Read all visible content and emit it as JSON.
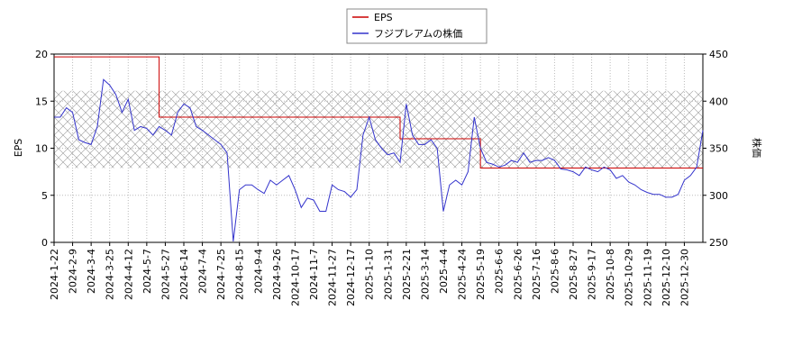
{
  "chart_data": {
    "type": "line",
    "legend_position": "upper center",
    "ylabel": "EPS",
    "y2label": "株価",
    "ylim": [
      0,
      20
    ],
    "yticks": [
      0,
      5,
      10,
      15,
      20
    ],
    "y2lim": [
      250,
      450
    ],
    "y2ticks": [
      250,
      300,
      350,
      400,
      450
    ],
    "grid": true,
    "shaded_range": [
      7.9,
      16.1
    ],
    "categories": [
      "2024-1-22",
      null,
      null,
      "2024-2-9",
      null,
      null,
      "2024-3-4",
      null,
      null,
      "2024-3-25",
      null,
      null,
      "2024-4-12",
      null,
      null,
      "2024-5-7",
      null,
      null,
      "2024-5-27",
      null,
      null,
      "2024-6-14",
      null,
      null,
      "2024-7-4",
      null,
      null,
      "2024-7-25",
      null,
      null,
      "2024-8-15",
      null,
      null,
      "2024-9-4",
      null,
      null,
      "2024-9-26",
      null,
      null,
      "2024-10-17",
      null,
      null,
      "2024-11-7",
      null,
      null,
      "2024-11-27",
      null,
      null,
      "2024-12-17",
      null,
      null,
      "2025-1-10",
      null,
      null,
      "2025-1-31",
      null,
      null,
      "2025-2-21",
      null,
      null,
      "2025-3-14",
      null,
      null,
      "2025-4-4",
      null,
      null,
      "2025-4-24",
      null,
      null,
      "2025-5-19",
      null,
      null,
      "2025-6-6",
      null,
      null,
      "2025-6-26",
      null,
      null,
      "2025-7-16",
      null,
      null,
      "2025-8-6",
      null,
      null,
      "2025-8-27",
      null,
      null,
      "2025-9-17",
      null,
      null,
      "2025-10-8",
      null,
      null,
      "2025-10-29",
      null,
      null,
      "2025-11-19",
      null,
      null,
      "2025-12-10",
      null,
      null,
      "2025-12-30",
      null,
      null,
      null
    ],
    "series": [
      {
        "name": "EPS",
        "color": "#cc0000",
        "axis": "y",
        "step": true,
        "values": [
          19.7,
          19.7,
          19.7,
          19.7,
          19.7,
          19.7,
          19.7,
          19.7,
          19.7,
          19.7,
          19.7,
          19.7,
          19.7,
          19.7,
          19.7,
          19.7,
          19.7,
          13.3,
          13.3,
          13.3,
          13.3,
          13.3,
          13.3,
          13.3,
          13.3,
          13.3,
          13.3,
          13.3,
          13.3,
          13.3,
          13.3,
          13.3,
          13.3,
          13.3,
          13.3,
          13.3,
          13.3,
          13.3,
          13.3,
          13.3,
          13.3,
          13.3,
          13.3,
          13.3,
          13.3,
          13.3,
          13.3,
          13.3,
          13.3,
          13.3,
          13.3,
          13.3,
          13.3,
          13.3,
          13.3,
          13.3,
          11.0,
          11.0,
          11.0,
          11.0,
          11.0,
          11.0,
          11.0,
          11.0,
          11.0,
          11.0,
          11.0,
          11.0,
          11.0,
          7.9,
          7.9,
          7.9,
          7.9,
          7.9,
          7.9,
          7.9,
          7.9,
          7.9,
          7.9,
          7.9,
          7.9,
          7.9,
          7.9,
          7.9,
          7.9,
          7.9,
          7.9,
          7.9,
          7.9,
          7.9,
          7.9,
          7.9,
          7.9,
          7.9,
          7.9,
          7.9,
          7.9,
          7.9,
          7.9,
          7.9,
          7.9,
          7.9,
          7.9,
          7.9,
          7.9,
          7.9
        ]
      },
      {
        "name": "フジプレアムの株価",
        "color": "#3333cc",
        "axis": "y2",
        "values": [
          383,
          383,
          393,
          388,
          359,
          356,
          354,
          373,
          423,
          417,
          407,
          388,
          402,
          369,
          373,
          371,
          364,
          373,
          369,
          364,
          388,
          397,
          393,
          373,
          369,
          364,
          359,
          354,
          345,
          251,
          306,
          311,
          311,
          306,
          302,
          316,
          311,
          316,
          321,
          306,
          287,
          297,
          295,
          283,
          283,
          311,
          306,
          304,
          298,
          306,
          364,
          383,
          359,
          350,
          343,
          345,
          335,
          397,
          364,
          354,
          354,
          359,
          350,
          283,
          311,
          316,
          311,
          325,
          383,
          350,
          335,
          333,
          330,
          332,
          337,
          335,
          345,
          335,
          337,
          337,
          340,
          337,
          328,
          327,
          325,
          321,
          330,
          327,
          325,
          330,
          327,
          318,
          321,
          314,
          311,
          306,
          303,
          301,
          301,
          298,
          298,
          301,
          316,
          321,
          330,
          369
        ]
      }
    ]
  }
}
